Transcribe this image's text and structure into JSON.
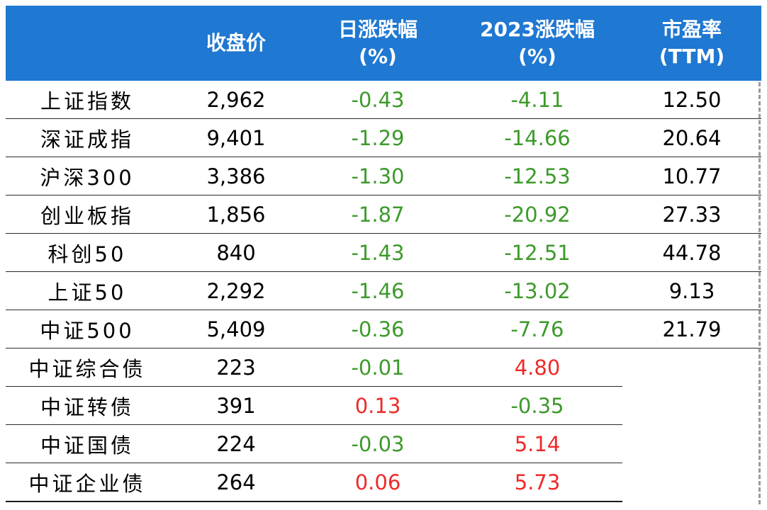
{
  "header": {
    "col0": "",
    "col1": "收盘价",
    "col2_line1": "日涨跌幅",
    "col2_line2": "(%)",
    "col3_line1": "2023涨跌幅",
    "col3_line2": "(%)",
    "col4_line1": "市盈率",
    "col4_line2": "(TTM)"
  },
  "colors": {
    "header_bg": "#1f78d1",
    "positive": "#ee2a2a",
    "negative": "#3c9a2a"
  },
  "rows": [
    {
      "name": "上证指数",
      "close": "2,962",
      "day": "-0.43",
      "ytd": "-4.11",
      "pe": "12.50"
    },
    {
      "name": "深证成指",
      "close": "9,401",
      "day": "-1.29",
      "ytd": "-14.66",
      "pe": "20.64"
    },
    {
      "name": "沪深300",
      "close": "3,386",
      "day": "-1.30",
      "ytd": "-12.53",
      "pe": "10.77"
    },
    {
      "name": "创业板指",
      "close": "1,856",
      "day": "-1.87",
      "ytd": "-20.92",
      "pe": "27.33"
    },
    {
      "name": "科创50",
      "close": "840",
      "day": "-1.43",
      "ytd": "-12.51",
      "pe": "44.78"
    },
    {
      "name": "上证50",
      "close": "2,292",
      "day": "-1.46",
      "ytd": "-13.02",
      "pe": "9.13"
    },
    {
      "name": "中证500",
      "close": "5,409",
      "day": "-0.36",
      "ytd": "-7.76",
      "pe": "21.79"
    },
    {
      "name": "中证综合债",
      "close": "223",
      "day": "-0.01",
      "ytd": "4.80",
      "pe": ""
    },
    {
      "name": "中证转债",
      "close": "391",
      "day": "0.13",
      "ytd": "-0.35",
      "pe": ""
    },
    {
      "name": "中证国债",
      "close": "224",
      "day": "-0.03",
      "ytd": "5.14",
      "pe": ""
    },
    {
      "name": "中证企业债",
      "close": "264",
      "day": "0.06",
      "ytd": "5.73",
      "pe": ""
    }
  ]
}
